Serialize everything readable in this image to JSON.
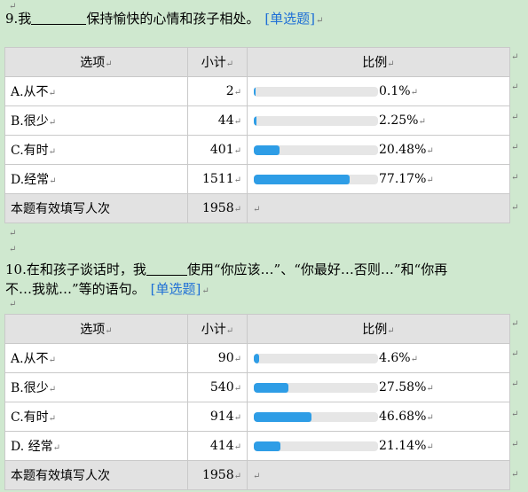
{
  "q1": {
    "num": "9.我",
    "text": "保持愉快的心情和孩子相处。",
    "tag": "[单选题]",
    "headers": [
      "选项",
      "小计",
      "比例"
    ],
    "rows": [
      {
        "label": "A.从不",
        "count": "2",
        "pct": "0.1%",
        "frac": 0.001
      },
      {
        "label": "B.很少",
        "count": "44",
        "pct": "2.25%",
        "frac": 0.0225
      },
      {
        "label": "C.有时",
        "count": "401",
        "pct": "20.48%",
        "frac": 0.2048
      },
      {
        "label": "D.经常",
        "count": "1511",
        "pct": "77.17%",
        "frac": 0.7717
      }
    ],
    "footer_label": "本题有效填写人次",
    "footer_count": "1958"
  },
  "q2": {
    "line1_a": "10.在和孩子谈话时，我",
    "line1_b": "使用“你应该…”、“你最好…否则…”和“你再",
    "line2": "不…我就…”等的语句。",
    "tag": "[单选题]",
    "headers": [
      "选项",
      "小计",
      "比例"
    ],
    "rows": [
      {
        "label": "A.从不",
        "count": "90",
        "pct": "4.6%",
        "frac": 0.046
      },
      {
        "label": "B.很少",
        "count": "540",
        "pct": "27.58%",
        "frac": 0.2758
      },
      {
        "label": "C.有时",
        "count": "914",
        "pct": "46.68%",
        "frac": 0.4668
      },
      {
        "label": "D. 经常",
        "count": "414",
        "pct": "21.14%",
        "frac": 0.2114
      }
    ],
    "footer_label": "本题有效填写人次",
    "footer_count": "1958"
  },
  "mark": "↵"
}
